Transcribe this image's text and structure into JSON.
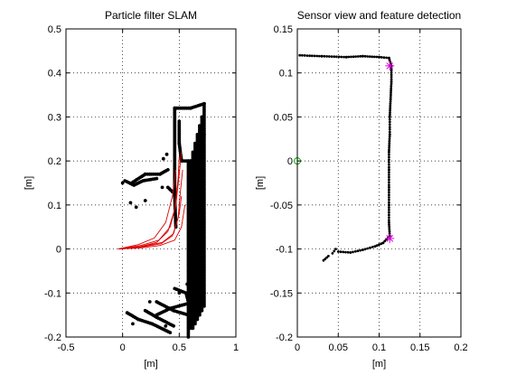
{
  "figure": {
    "background": "#ffffff"
  },
  "chart_data": [
    {
      "type": "scatter",
      "title": "Particle filter SLAM",
      "xlabel": "[m]",
      "ylabel": "[m]",
      "xlim": [
        -0.5,
        1
      ],
      "ylim": [
        -0.2,
        0.5
      ],
      "xticks": [
        -0.5,
        0,
        0.5,
        1
      ],
      "xtick_labels": [
        "-0.5",
        "0",
        "0.5",
        "1"
      ],
      "yticks": [
        -0.2,
        -0.1,
        0,
        0.1,
        0.2,
        0.3,
        0.4,
        0.5
      ],
      "ytick_labels": [
        "-0.2",
        "-0.1",
        "0",
        "0.1",
        "0.2",
        "0.3",
        "0.4",
        "0.5"
      ],
      "grid": true,
      "series": [
        {
          "kind": "map_points",
          "color": "#000000",
          "marker": "dot",
          "segments": [
            [
              [
                0.46,
                0.32
              ],
              [
                0.6,
                0.32
              ],
              [
                0.72,
                0.33
              ],
              [
                0.72,
                0.26
              ]
            ],
            [
              [
                0.46,
                0.32
              ],
              [
                0.46,
                0.12
              ],
              [
                0.47,
                0.05
              ]
            ],
            [
              [
                0.5,
                0.29
              ],
              [
                0.5,
                0.24
              ],
              [
                0.52,
                0.2
              ]
            ],
            [
              [
                0.52,
                0.2
              ],
              [
                0.6,
                0.2
              ]
            ],
            [
              [
                0.58,
                0.2
              ],
              [
                0.58,
                -0.2
              ]
            ],
            [
              [
                0.6,
                0.2
              ],
              [
                0.6,
                -0.18
              ]
            ],
            [
              [
                0.62,
                0.22
              ],
              [
                0.62,
                -0.18
              ]
            ],
            [
              [
                0.64,
                0.24
              ],
              [
                0.64,
                -0.17
              ]
            ],
            [
              [
                0.66,
                0.26
              ],
              [
                0.66,
                -0.16
              ]
            ],
            [
              [
                0.68,
                0.28
              ],
              [
                0.68,
                -0.15
              ]
            ],
            [
              [
                0.7,
                0.3
              ],
              [
                0.7,
                -0.14
              ]
            ],
            [
              [
                0.72,
                0.26
              ],
              [
                0.72,
                -0.13
              ]
            ],
            [
              [
                0.02,
                0.155
              ],
              [
                0.1,
                0.145
              ],
              [
                0.18,
                0.155
              ],
              [
                0.3,
                0.16
              ]
            ],
            [
              [
                0.08,
                0.15
              ],
              [
                0.2,
                0.17
              ],
              [
                0.33,
                0.17
              ]
            ],
            [
              [
                0.33,
                0.17
              ],
              [
                0.4,
                0.18
              ]
            ],
            [
              [
                0.4,
                0.14
              ],
              [
                0.44,
                0.13
              ]
            ],
            [
              [
                0.04,
                -0.145
              ],
              [
                0.14,
                -0.16
              ],
              [
                0.26,
                -0.17
              ],
              [
                0.42,
                -0.19
              ]
            ],
            [
              [
                0.2,
                -0.14
              ],
              [
                0.3,
                -0.155
              ],
              [
                0.45,
                -0.175
              ]
            ],
            [
              [
                0.3,
                -0.12
              ],
              [
                0.45,
                -0.14
              ],
              [
                0.58,
                -0.15
              ]
            ],
            [
              [
                0.46,
                -0.09
              ],
              [
                0.56,
                -0.1
              ],
              [
                0.58,
                -0.12
              ]
            ],
            [
              [
                0.57,
                -0.08
              ],
              [
                0.72,
                -0.1
              ]
            ],
            [
              [
                0.3,
                -0.15
              ],
              [
                0.42,
                -0.135
              ],
              [
                0.56,
                -0.125
              ]
            ]
          ],
          "points": [
            [
              0.0,
              0.15
            ],
            [
              0.07,
              0.105
            ],
            [
              0.2,
              0.11
            ],
            [
              0.24,
              0.17
            ],
            [
              0.35,
              0.14
            ],
            [
              0.36,
              0.205
            ],
            [
              0.39,
              0.215
            ],
            [
              0.12,
              0.095
            ],
            [
              0.09,
              -0.17
            ],
            [
              0.38,
              -0.175
            ],
            [
              0.5,
              -0.1
            ],
            [
              0.24,
              -0.12
            ]
          ]
        },
        {
          "kind": "particle_trajectories",
          "color": "#dd0000",
          "paths": [
            [
              [
                -0.04,
                0.0
              ],
              [
                0.15,
                0.005
              ],
              [
                0.3,
                0.015
              ],
              [
                0.4,
                0.04
              ],
              [
                0.46,
                0.09
              ],
              [
                0.49,
                0.16
              ],
              [
                0.5,
                0.21
              ]
            ],
            [
              [
                -0.04,
                0.0
              ],
              [
                0.16,
                0.008
              ],
              [
                0.32,
                0.02
              ],
              [
                0.42,
                0.05
              ],
              [
                0.47,
                0.1
              ],
              [
                0.5,
                0.17
              ],
              [
                0.52,
                0.22
              ]
            ],
            [
              [
                -0.04,
                0.0
              ],
              [
                0.16,
                0.004
              ],
              [
                0.34,
                0.012
              ],
              [
                0.44,
                0.03
              ],
              [
                0.49,
                0.07
              ],
              [
                0.51,
                0.13
              ],
              [
                0.53,
                0.18
              ]
            ],
            [
              [
                -0.04,
                0.0
              ],
              [
                0.18,
                0.006
              ],
              [
                0.35,
                0.015
              ],
              [
                0.45,
                0.035
              ],
              [
                0.5,
                0.08
              ],
              [
                0.52,
                0.12
              ]
            ],
            [
              [
                -0.04,
                0.0
              ],
              [
                0.14,
                0.01
              ],
              [
                0.28,
                0.025
              ],
              [
                0.38,
                0.06
              ],
              [
                0.44,
                0.12
              ],
              [
                0.47,
                0.18
              ]
            ],
            [
              [
                -0.04,
                0.0
              ],
              [
                0.15,
                0.002
              ],
              [
                0.33,
                0.008
              ],
              [
                0.46,
                0.02
              ],
              [
                0.52,
                0.05
              ],
              [
                0.55,
                0.1
              ]
            ]
          ]
        }
      ]
    },
    {
      "type": "scatter",
      "title": "Sensor view and feature detection",
      "xlabel": "[m]",
      "ylabel": "[m]",
      "xlim": [
        0,
        0.2
      ],
      "ylim": [
        -0.2,
        0.15
      ],
      "xticks": [
        0,
        0.05,
        0.1,
        0.15,
        0.2
      ],
      "xtick_labels": [
        "0",
        "0.05",
        "0.1",
        "0.15",
        "0.2"
      ],
      "yticks": [
        -0.2,
        -0.15,
        -0.1,
        -0.05,
        0,
        0.05,
        0.1,
        0.15
      ],
      "ytick_labels": [
        "-0.2",
        "-0.15",
        "-0.1",
        "-0.05",
        "0",
        "0.05",
        "0.1",
        "0.15"
      ],
      "grid": true,
      "series": [
        {
          "kind": "scan_points",
          "color": "#000000",
          "marker": "dot",
          "segments": [
            [
              [
                0.003,
                0.12
              ],
              [
                0.03,
                0.119
              ],
              [
                0.06,
                0.118
              ],
              [
                0.08,
                0.119
              ],
              [
                0.1,
                0.118
              ],
              [
                0.112,
                0.117
              ]
            ],
            [
              [
                0.112,
                0.117
              ],
              [
                0.115,
                0.108
              ],
              [
                0.115,
                0.09
              ],
              [
                0.114,
                0.07
              ],
              [
                0.113,
                0.05
              ],
              [
                0.113,
                0.03
              ],
              [
                0.112,
                0.01
              ]
            ],
            [
              [
                0.112,
                0.01
              ],
              [
                0.112,
                -0.01
              ],
              [
                0.112,
                -0.03
              ],
              [
                0.112,
                -0.05
              ],
              [
                0.112,
                -0.07
              ],
              [
                0.113,
                -0.085
              ]
            ],
            [
              [
                0.113,
                -0.085
              ],
              [
                0.105,
                -0.093
              ],
              [
                0.095,
                -0.097
              ],
              [
                0.08,
                -0.101
              ],
              [
                0.065,
                -0.104
              ],
              [
                0.05,
                -0.103
              ]
            ],
            [
              [
                0.047,
                -0.1
              ],
              [
                0.043,
                -0.105
              ]
            ],
            [
              [
                0.038,
                -0.108
              ],
              [
                0.032,
                -0.113
              ]
            ]
          ],
          "points": []
        },
        {
          "kind": "detected_features",
          "color": "#dd00dd",
          "marker": "asterisk",
          "points": [
            [
              0.113,
              0.108
            ],
            [
              0.113,
              -0.088
            ]
          ]
        },
        {
          "kind": "sensor_origin",
          "color": "#00aa00",
          "marker": "circle",
          "points": [
            [
              0.0,
              0.0
            ]
          ]
        }
      ]
    }
  ]
}
